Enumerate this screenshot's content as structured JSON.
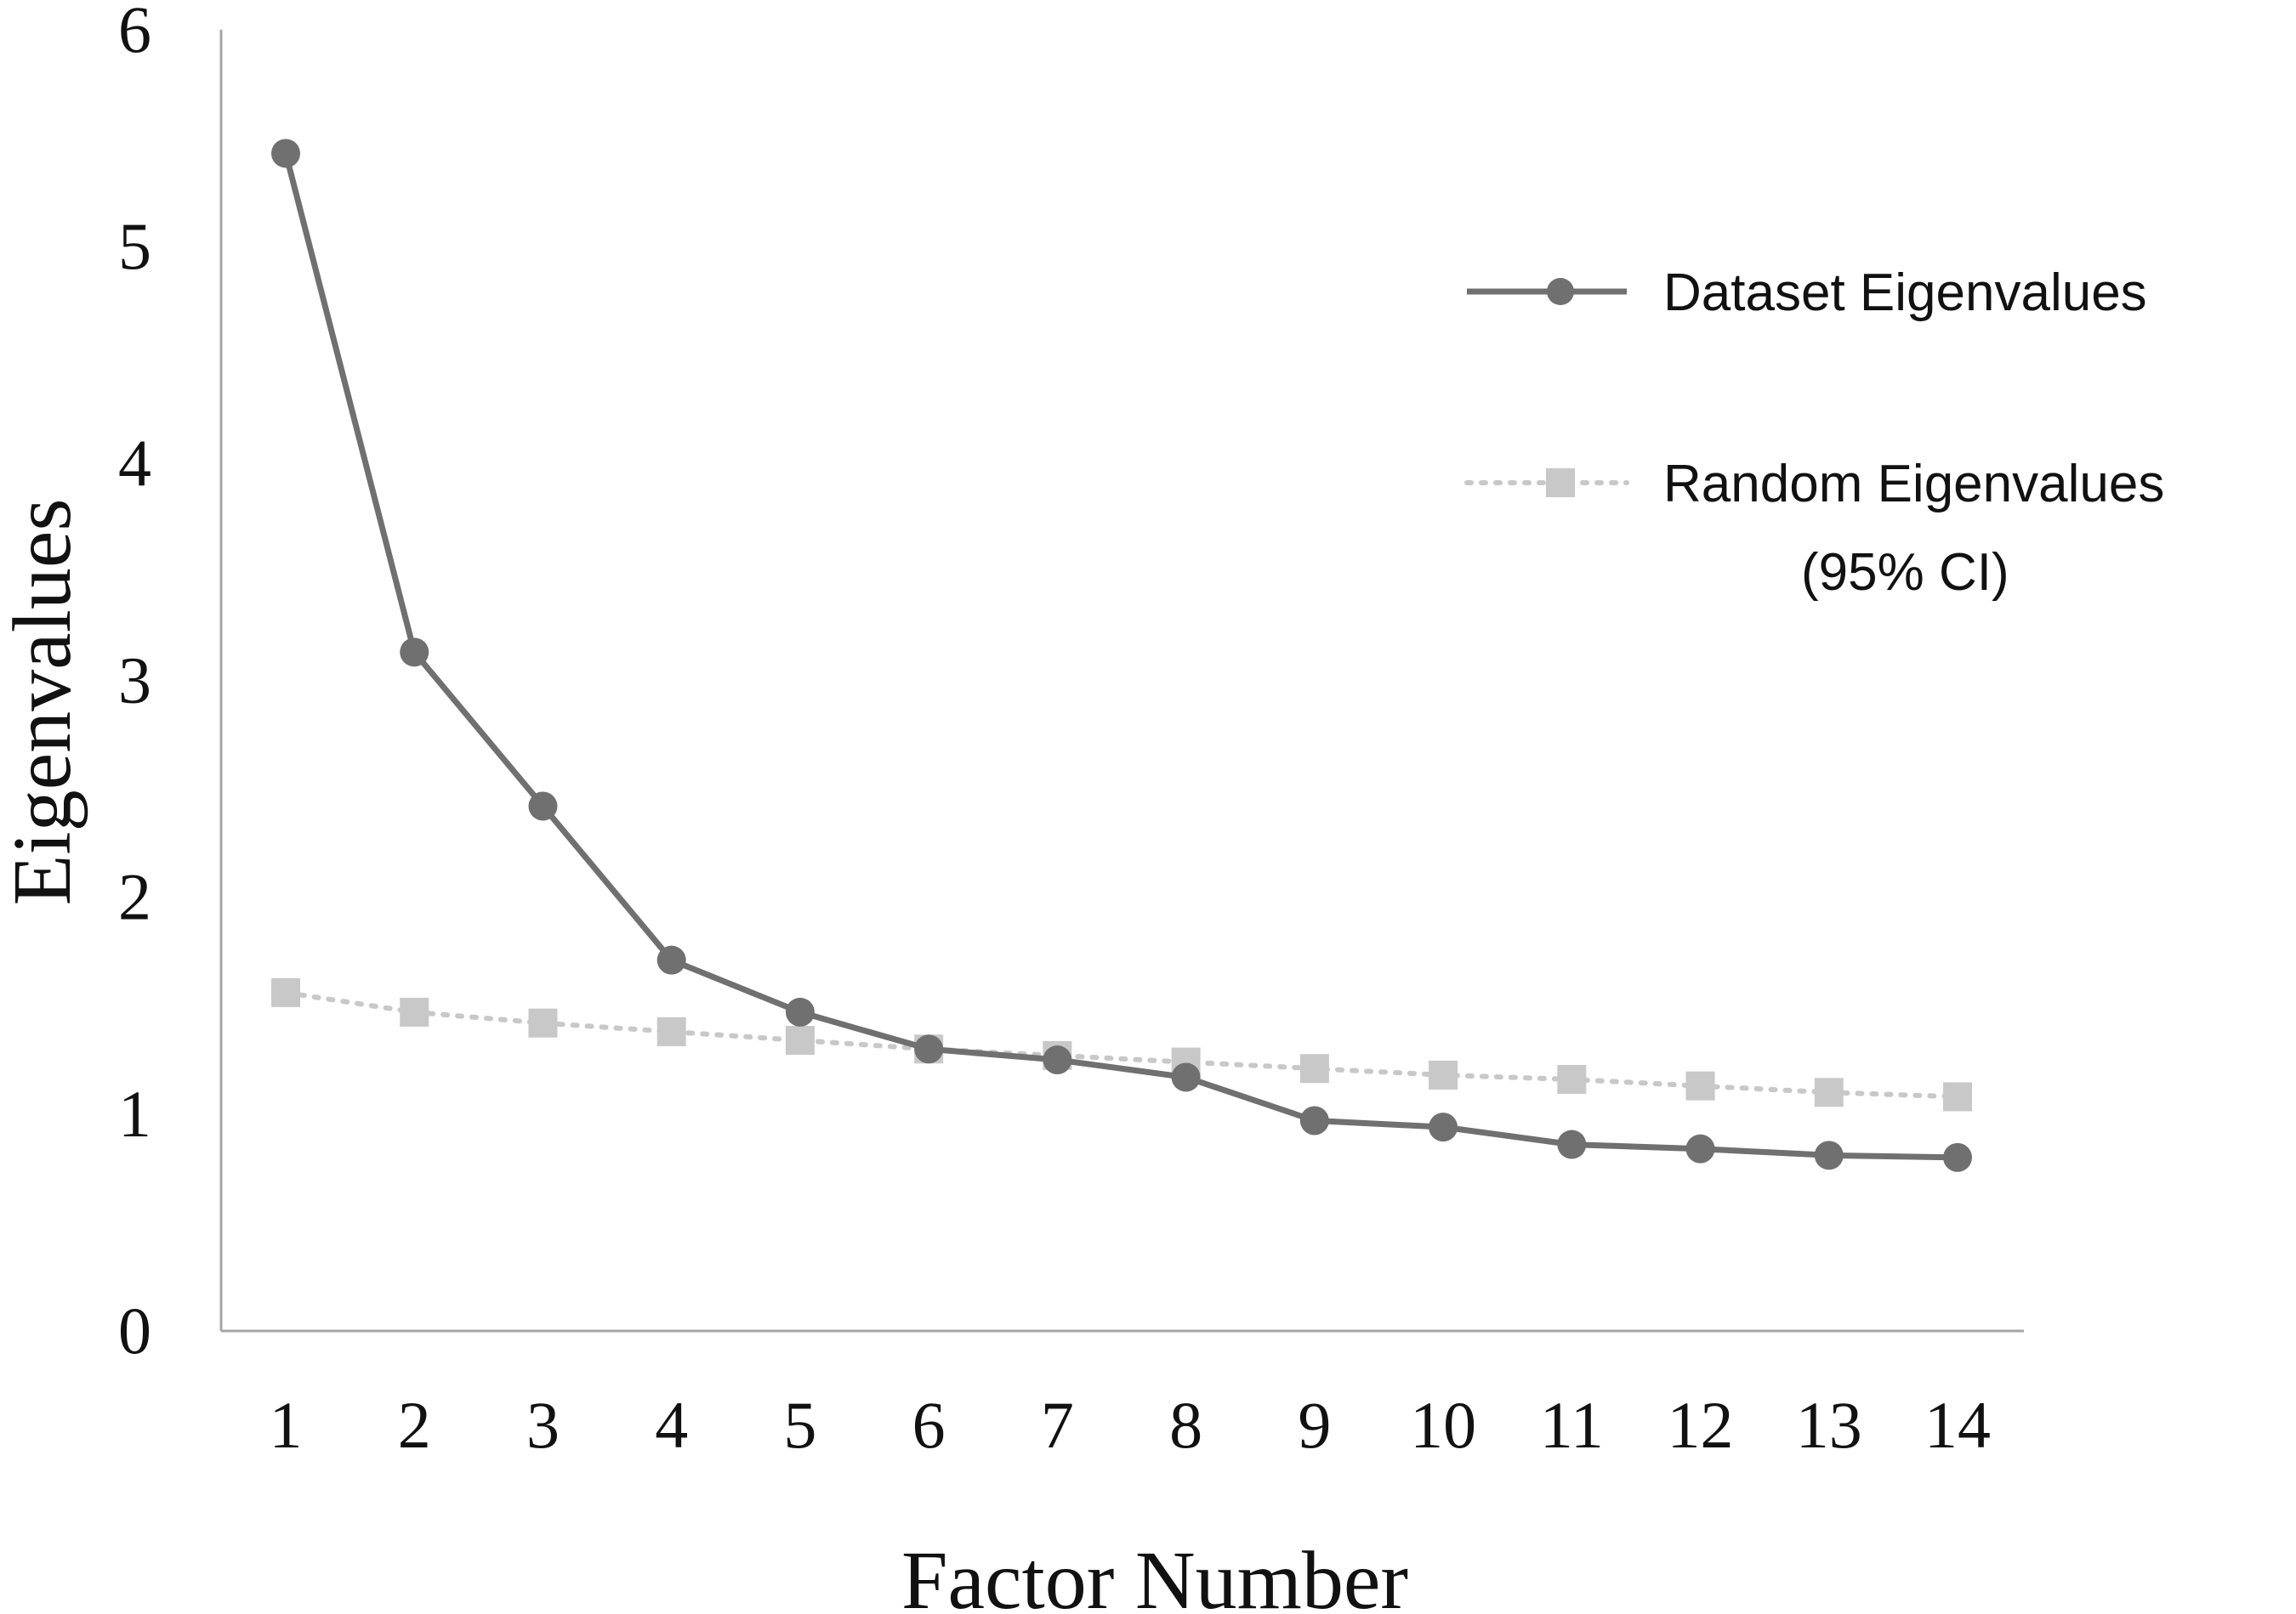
{
  "chart_data": {
    "type": "line",
    "title": "",
    "xlabel": "Factor Number",
    "ylabel": "Eigenvalues",
    "x": [
      1,
      2,
      3,
      4,
      5,
      6,
      7,
      8,
      9,
      10,
      11,
      12,
      13,
      14
    ],
    "x_tick_labels": [
      "1",
      "2",
      "3",
      "4",
      "5",
      "6",
      "7",
      "8",
      "9",
      "10",
      "11",
      "12",
      "13",
      "14"
    ],
    "y_ticks": [
      0,
      1,
      2,
      3,
      4,
      5,
      6
    ],
    "y_tick_labels": [
      "0",
      "1",
      "2",
      "3",
      "4",
      "5",
      "6"
    ],
    "ylim": [
      0,
      6
    ],
    "grid": false,
    "legend_position": "top-right",
    "series": [
      {
        "name": "Dataset Eigenvalues",
        "color": "#707070",
        "line_style": "solid",
        "marker": "circle",
        "values": [
          5.43,
          3.13,
          2.42,
          1.71,
          1.47,
          1.3,
          1.25,
          1.17,
          0.97,
          0.94,
          0.86,
          0.84,
          0.81,
          0.8
        ]
      },
      {
        "name": "Random Eigenvalues",
        "name_line2": "(95% CI)",
        "color": "#c8c8c8",
        "line_style": "dotted",
        "marker": "square",
        "values": [
          1.56,
          1.47,
          1.42,
          1.38,
          1.34,
          1.3,
          1.27,
          1.24,
          1.21,
          1.18,
          1.16,
          1.13,
          1.1,
          1.08
        ]
      }
    ]
  }
}
